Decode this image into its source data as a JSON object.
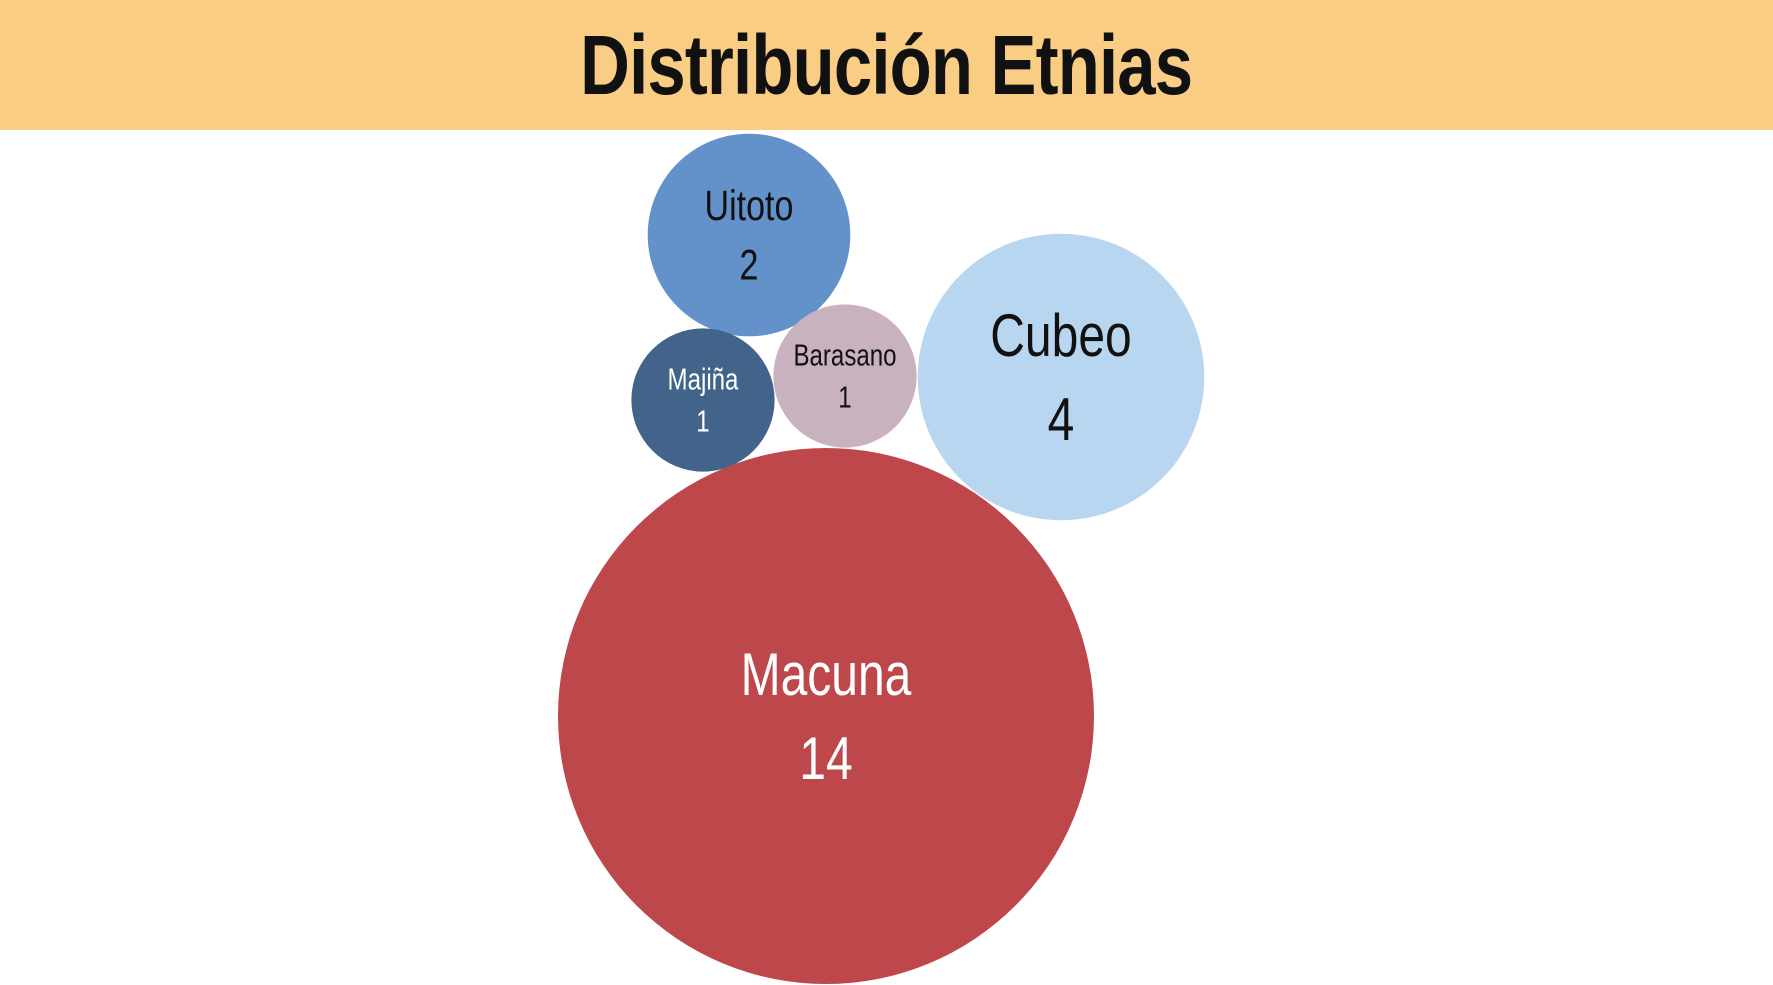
{
  "header": {
    "title": "Distribución Etnias",
    "background_color": "#FACD85"
  },
  "chart_data": {
    "type": "bubble",
    "title": "Distribución Etnias",
    "series": [
      {
        "name": "Uitoto",
        "value": 2,
        "color": "#6391C9",
        "label_color": "#111111"
      },
      {
        "name": "Majiña",
        "value": 1,
        "color": "#42648A",
        "label_color": "#FFFFFF"
      },
      {
        "name": "Barasano",
        "value": 1,
        "color": "#C8B2BF",
        "label_color": "#111111"
      },
      {
        "name": "Cubeo",
        "value": 4,
        "color": "#B9D6F0",
        "label_color": "#111111"
      },
      {
        "name": "Macuna",
        "value": 14,
        "color": "#BE474C",
        "label_color": "#FFFFFF"
      }
    ]
  }
}
